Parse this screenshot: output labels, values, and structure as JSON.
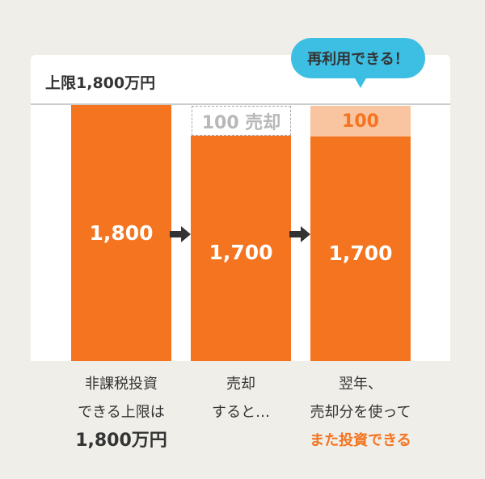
{
  "header": {
    "limit_label": "上限1,800万円"
  },
  "bubble": {
    "text": "再利用できる！",
    "color": "#3dbfe3"
  },
  "colors": {
    "bar": "#f47420",
    "reusable": "#f9c4a0",
    "sold_text": "#b8b8b8"
  },
  "columns": [
    {
      "value": "1,800",
      "caption": [
        "非課税投資",
        "できる上限は",
        "1,800万円"
      ]
    },
    {
      "value": "1,700",
      "top_label": "100 売却",
      "caption": [
        "売却",
        "すると…"
      ]
    },
    {
      "value": "1,700",
      "top_label": "100",
      "caption": [
        "翌年、",
        "売却分を使って",
        "また投資できる"
      ]
    }
  ]
}
